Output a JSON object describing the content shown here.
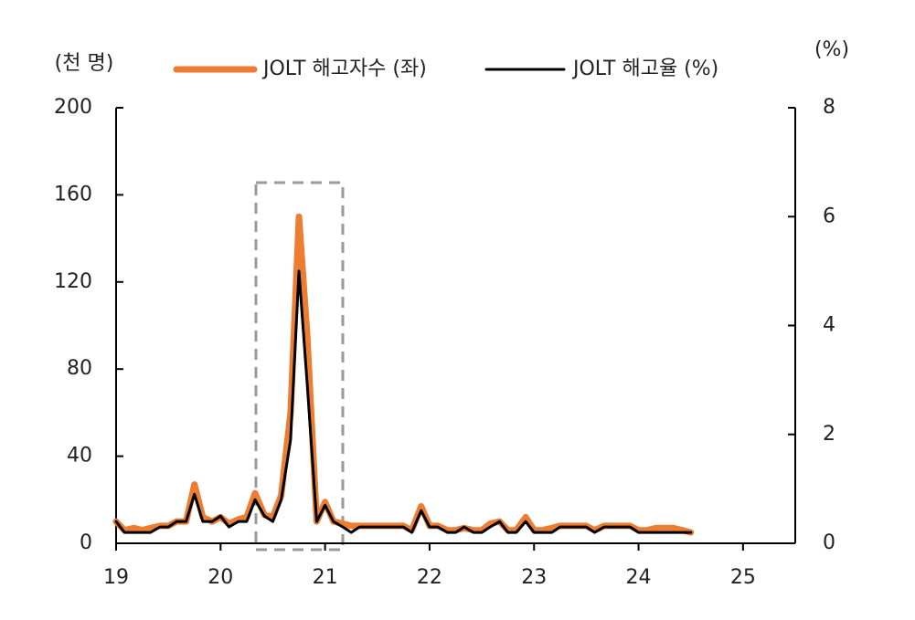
{
  "chart_data": {
    "type": "line",
    "y_label": "(천 명)",
    "y2_label": "(%)",
    "x": [
      19,
      19.08,
      19.17,
      19.25,
      19.33,
      19.42,
      19.5,
      19.58,
      19.67,
      19.75,
      19.83,
      19.92,
      20,
      20.08,
      20.17,
      20.25,
      20.33,
      20.42,
      20.5,
      20.58,
      20.67,
      20.75,
      20.83,
      20.92,
      21,
      21.08,
      21.17,
      21.25,
      21.33,
      21.42,
      21.5,
      21.58,
      21.67,
      21.75,
      21.83,
      21.92,
      22,
      22.08,
      22.17,
      22.25,
      22.33,
      22.42,
      22.5,
      22.58,
      22.67,
      22.75,
      22.83,
      22.92,
      23,
      23.08,
      23.17,
      23.25,
      23.33,
      23.42,
      23.5,
      23.58,
      23.67,
      23.75,
      23.83,
      23.92,
      24,
      24.08,
      24.17,
      24.25,
      24.33,
      24.42,
      24.5
    ],
    "series": [
      {
        "name": "JOLT 해고자수 (좌)",
        "color": "#ed7d31",
        "values": [
          10,
          6,
          7,
          6,
          7,
          8,
          8,
          10,
          10,
          27,
          12,
          10,
          12,
          9,
          11,
          12,
          23,
          13,
          12,
          22,
          60,
          150,
          95,
          10,
          19,
          10,
          9,
          8,
          8,
          8,
          8,
          8,
          8,
          8,
          6,
          17,
          8,
          8,
          6,
          6,
          7,
          6,
          6,
          9,
          10,
          6,
          6,
          12,
          6,
          6,
          7,
          8,
          8,
          8,
          8,
          6,
          8,
          8,
          8,
          8,
          6,
          6,
          7,
          7,
          7,
          6,
          5
        ]
      },
      {
        "name": "JOLT 해고율 (%)",
        "color": "#000000",
        "axis": "y2",
        "values": [
          0.4,
          0.2,
          0.2,
          0.2,
          0.2,
          0.3,
          0.3,
          0.4,
          0.4,
          0.9,
          0.4,
          0.4,
          0.5,
          0.3,
          0.4,
          0.4,
          0.8,
          0.5,
          0.4,
          0.8,
          1.9,
          5.0,
          2.9,
          0.4,
          0.7,
          0.4,
          0.3,
          0.2,
          0.3,
          0.3,
          0.3,
          0.3,
          0.3,
          0.3,
          0.2,
          0.6,
          0.3,
          0.3,
          0.2,
          0.2,
          0.3,
          0.2,
          0.2,
          0.3,
          0.4,
          0.2,
          0.2,
          0.4,
          0.2,
          0.2,
          0.2,
          0.3,
          0.3,
          0.3,
          0.3,
          0.2,
          0.3,
          0.3,
          0.3,
          0.3,
          0.2,
          0.2,
          0.2,
          0.2,
          0.2,
          0.2,
          0.2
        ]
      }
    ],
    "xlim": [
      19,
      25.5
    ],
    "xticks": [
      19,
      20,
      21,
      22,
      23,
      24,
      25
    ],
    "ylim": [
      0,
      200
    ],
    "yticks": [
      0,
      40,
      80,
      120,
      160,
      200
    ],
    "y2lim": [
      0,
      8
    ],
    "y2ticks": [
      0,
      2,
      4,
      6,
      8
    ]
  }
}
